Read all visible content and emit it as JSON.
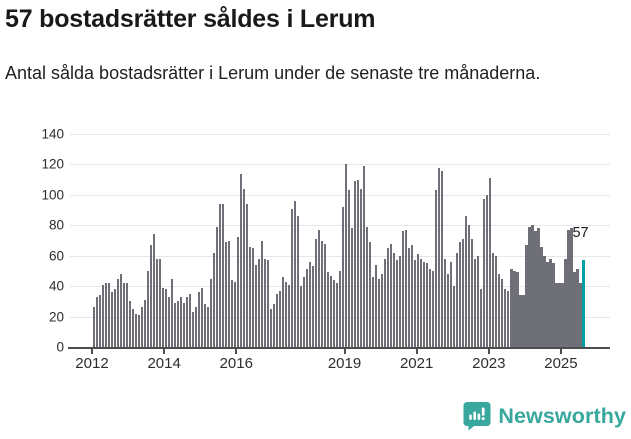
{
  "header": {
    "title": "57 bostadsrätter såldes i Lerum",
    "subtitle": "Antal sålda bostadsrätter i Lerum under de senaste tre månaderna."
  },
  "annotation": {
    "label": "57"
  },
  "footer": {
    "brand": "Newsworthy",
    "brand_color": "#38a79d",
    "logo_icon": "newsworthy-bubble-bar-chart-icon"
  },
  "chart_data": {
    "type": "bar",
    "title": "57 bostadsrätter såldes i Lerum",
    "subtitle": "Antal sålda bostadsrätter i Lerum under de senaste tre månaderna.",
    "xlabel": "",
    "ylabel": "",
    "x_start": "2012-02",
    "x_end": "2025-09",
    "x_unit": "month",
    "values": [
      26,
      33,
      34,
      41,
      42,
      42,
      36,
      38,
      45,
      48,
      42,
      42,
      30,
      25,
      22,
      21,
      26,
      31,
      50,
      67,
      74,
      58,
      58,
      39,
      38,
      33,
      45,
      29,
      30,
      33,
      29,
      33,
      35,
      23,
      26,
      36,
      39,
      28,
      26,
      45,
      62,
      79,
      94,
      94,
      69,
      70,
      44,
      43,
      72,
      114,
      104,
      94,
      66,
      65,
      54,
      58,
      70,
      58,
      57,
      25,
      28,
      35,
      37,
      46,
      43,
      41,
      91,
      96,
      86,
      40,
      46,
      51,
      56,
      53,
      71,
      77,
      70,
      68,
      49,
      47,
      44,
      42,
      50,
      92,
      120,
      103,
      78,
      109,
      110,
      104,
      119,
      79,
      69,
      46,
      54,
      45,
      48,
      58,
      65,
      68,
      62,
      57,
      60,
      76,
      77,
      65,
      67,
      57,
      61,
      58,
      56,
      55,
      51,
      50,
      103,
      118,
      116,
      58,
      48,
      56,
      40,
      62,
      69,
      71,
      86,
      80,
      71,
      58,
      60,
      38,
      97,
      100,
      111,
      62,
      60,
      48,
      45,
      38,
      37,
      51,
      50,
      49,
      34,
      34,
      67,
      79,
      80,
      76,
      78,
      66,
      60,
      56,
      58,
      55,
      42,
      42,
      42,
      58,
      77,
      78,
      49,
      51,
      42,
      57
    ],
    "highlight_last": {
      "value": 57,
      "label": "57",
      "color": "#00a0a6"
    },
    "bar_color": "#6f6f78",
    "ylim": [
      0,
      140
    ],
    "yticks": [
      0,
      20,
      40,
      60,
      80,
      100,
      120,
      140
    ],
    "xticks": [
      "2012",
      "2014",
      "2016",
      "2019",
      "2021",
      "2023",
      "2025"
    ],
    "xtick_years": [
      2012,
      2014,
      2016,
      2019,
      2021,
      2023,
      2025
    ],
    "grid": true,
    "legend": "none"
  }
}
